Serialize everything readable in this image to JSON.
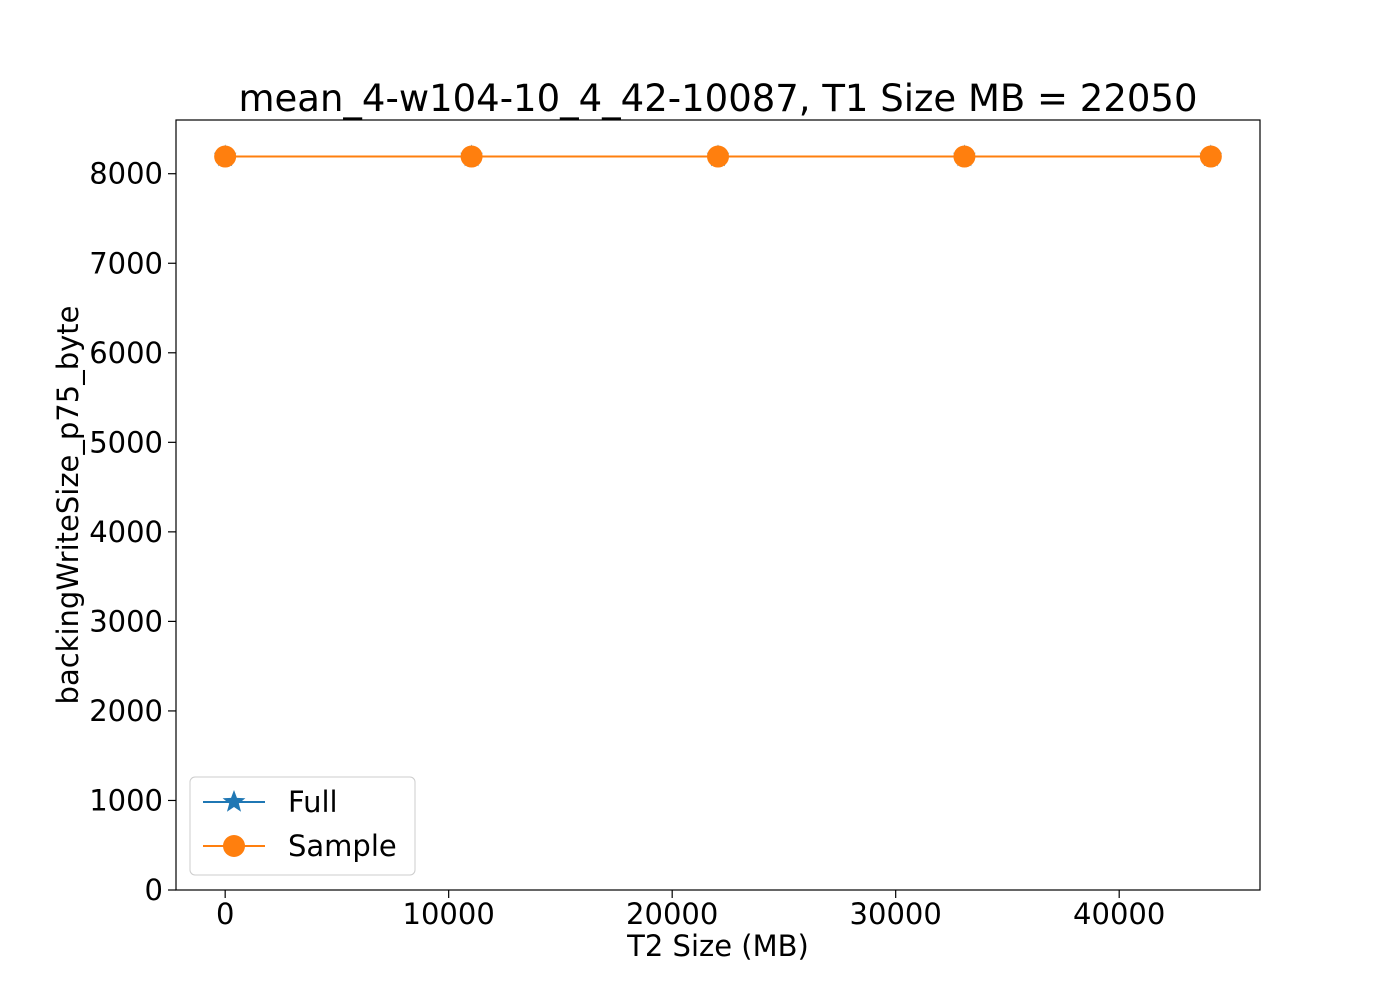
{
  "chart_data": {
    "type": "line",
    "title": "mean_4-w104-10_4_42-10087, T1 Size MB = 22050",
    "xlabel": "T2 Size (MB)",
    "ylabel": "backingWriteSize_p75_byte",
    "xlim": [
      -2200,
      46300
    ],
    "ylim": [
      0,
      8600
    ],
    "xticks": [
      0,
      10000,
      20000,
      30000,
      40000
    ],
    "yticks": [
      0,
      1000,
      2000,
      3000,
      4000,
      5000,
      6000,
      7000,
      8000
    ],
    "grid": false,
    "legend_position": "lower-left",
    "series": [
      {
        "name": "Full",
        "marker": "star",
        "color": "#1f77b4",
        "x": [
          0,
          11025,
          22050,
          33075,
          44100
        ],
        "y": [
          8192,
          8192,
          8192,
          8192,
          8192
        ]
      },
      {
        "name": "Sample",
        "marker": "circle",
        "color": "#ff7f0e",
        "x": [
          0,
          11025,
          22050,
          33075,
          44100
        ],
        "y": [
          8192,
          8192,
          8192,
          8192,
          8192
        ]
      }
    ]
  }
}
